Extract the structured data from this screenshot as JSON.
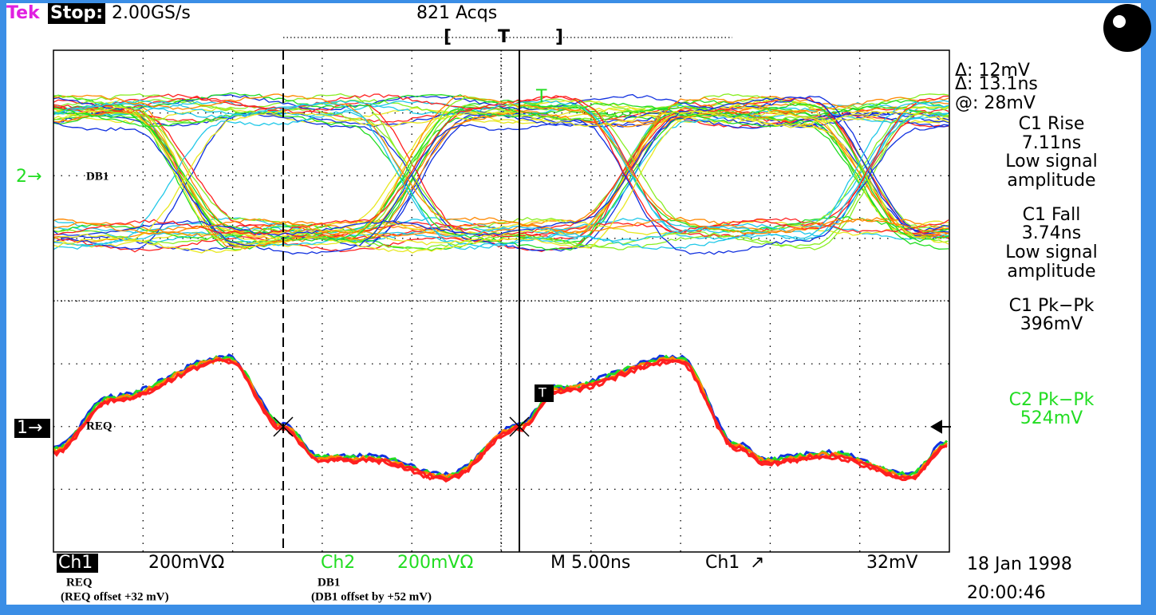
{
  "header": {
    "brand": "Tek",
    "state": "Stop:",
    "sample_rate": "2.00GS/s",
    "acquisitions": "821 Acqs",
    "trigger_open": "[",
    "trigger_mark": "T",
    "trigger_close": "]"
  },
  "readouts": [
    {
      "text": "Δ: 12mV"
    },
    {
      "text": "Δ: 13.1ns"
    },
    {
      "text": "@: 28mV"
    },
    {
      "text": "C1 Rise"
    },
    {
      "text": "7.11ns"
    },
    {
      "text": "Low signal"
    },
    {
      "text": "amplitude"
    },
    {
      "text": "C1 Fall"
    },
    {
      "text": "3.74ns"
    },
    {
      "text": "Low signal"
    },
    {
      "text": "amplitude"
    },
    {
      "text": "C1 Pk−Pk"
    },
    {
      "text": "396mV"
    },
    {
      "text": "C2 Pk−Pk"
    },
    {
      "text": "524mV"
    }
  ],
  "markers": {
    "ch2_marker": "2→",
    "ch2_label": "DB1",
    "ch1_marker": "1→",
    "ch1_label": "REQ",
    "ch2_trigger": "T",
    "ch1_trigger": "T"
  },
  "footer": {
    "ch1": "Ch1",
    "ch1_scale": "200mVΩ",
    "ch2": "Ch2",
    "ch2_scale": "200mVΩ",
    "timebase": "M 5.00ns",
    "trigger_source": "Ch1",
    "trigger_slope": "↗",
    "trigger_level": "32mV",
    "ch1_name": "REQ",
    "ch1_note": "(REQ offset +32 mV)",
    "ch2_name": "DB1",
    "ch2_note": "(DB1 offset by +52 mV)",
    "date": "18 Jan 1998",
    "time": "20:00:46"
  }
}
